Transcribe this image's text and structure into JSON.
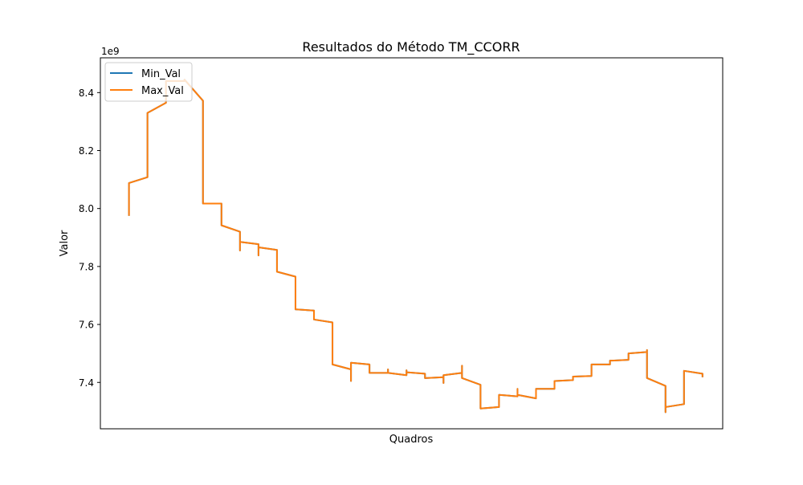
{
  "chart_data": {
    "type": "line",
    "title": "Resultados do Método TM_CCORR",
    "xlabel": "Quadros",
    "ylabel": "Valor",
    "y_offset_label": "1e9",
    "x_ticks": "none",
    "y_ticks": [
      7.4,
      7.6,
      7.8,
      8.0,
      8.2,
      8.4
    ],
    "y_tick_labels": [
      "7.4",
      "7.6",
      "7.8",
      "8.0",
      "8.2",
      "8.4"
    ],
    "ylim": [
      7.24,
      8.52
    ],
    "xlim": [
      -34,
      706
    ],
    "y_scale_factor": 1000000000,
    "grid": false,
    "legend_placement": "top-left",
    "series": [
      {
        "name": "Min_Val",
        "color": "#1f77b4",
        "points": [
          [
            0,
            7.975
          ],
          [
            0,
            8.088
          ],
          [
            22,
            8.108
          ],
          [
            22,
            8.33
          ],
          [
            44,
            8.365
          ],
          [
            44,
            8.44
          ],
          [
            66,
            8.44
          ],
          [
            66,
            8.445
          ],
          [
            88,
            8.372
          ],
          [
            88,
            8.017
          ],
          [
            110,
            8.017
          ],
          [
            110,
            7.942
          ],
          [
            132,
            7.92
          ],
          [
            132,
            7.855
          ],
          [
            132,
            7.885
          ],
          [
            154,
            7.877
          ],
          [
            154,
            7.838
          ],
          [
            154,
            7.866
          ],
          [
            176,
            7.857
          ],
          [
            176,
            7.782
          ],
          [
            198,
            7.765
          ],
          [
            198,
            7.652
          ],
          [
            220,
            7.648
          ],
          [
            220,
            7.617
          ],
          [
            242,
            7.607
          ],
          [
            242,
            7.462
          ],
          [
            264,
            7.445
          ],
          [
            264,
            7.405
          ],
          [
            264,
            7.468
          ],
          [
            286,
            7.462
          ],
          [
            286,
            7.433
          ],
          [
            308,
            7.433
          ],
          [
            308,
            7.445
          ],
          [
            308,
            7.433
          ],
          [
            330,
            7.425
          ],
          [
            330,
            7.442
          ],
          [
            330,
            7.435
          ],
          [
            352,
            7.43
          ],
          [
            352,
            7.415
          ],
          [
            374,
            7.418
          ],
          [
            374,
            7.398
          ],
          [
            374,
            7.425
          ],
          [
            396,
            7.433
          ],
          [
            396,
            7.458
          ],
          [
            396,
            7.415
          ],
          [
            418,
            7.392
          ],
          [
            418,
            7.31
          ],
          [
            440,
            7.315
          ],
          [
            440,
            7.357
          ],
          [
            462,
            7.352
          ],
          [
            462,
            7.378
          ],
          [
            462,
            7.357
          ],
          [
            484,
            7.345
          ],
          [
            484,
            7.378
          ],
          [
            506,
            7.378
          ],
          [
            506,
            7.405
          ],
          [
            528,
            7.408
          ],
          [
            528,
            7.42
          ],
          [
            550,
            7.422
          ],
          [
            550,
            7.462
          ],
          [
            572,
            7.462
          ],
          [
            572,
            7.475
          ],
          [
            594,
            7.478
          ],
          [
            594,
            7.5
          ],
          [
            616,
            7.505
          ],
          [
            616,
            7.512
          ],
          [
            616,
            7.415
          ],
          [
            638,
            7.388
          ],
          [
            638,
            7.297
          ],
          [
            638,
            7.315
          ],
          [
            660,
            7.325
          ],
          [
            660,
            7.44
          ],
          [
            682,
            7.43
          ],
          [
            682,
            7.418
          ]
        ]
      },
      {
        "name": "Max_Val",
        "color": "#ff7f0e",
        "points": [
          [
            0,
            7.975
          ],
          [
            0,
            8.088
          ],
          [
            22,
            8.108
          ],
          [
            22,
            8.33
          ],
          [
            44,
            8.365
          ],
          [
            44,
            8.44
          ],
          [
            66,
            8.44
          ],
          [
            66,
            8.445
          ],
          [
            88,
            8.372
          ],
          [
            88,
            8.017
          ],
          [
            110,
            8.017
          ],
          [
            110,
            7.942
          ],
          [
            132,
            7.92
          ],
          [
            132,
            7.855
          ],
          [
            132,
            7.885
          ],
          [
            154,
            7.877
          ],
          [
            154,
            7.838
          ],
          [
            154,
            7.866
          ],
          [
            176,
            7.857
          ],
          [
            176,
            7.782
          ],
          [
            198,
            7.765
          ],
          [
            198,
            7.652
          ],
          [
            220,
            7.648
          ],
          [
            220,
            7.617
          ],
          [
            242,
            7.607
          ],
          [
            242,
            7.462
          ],
          [
            264,
            7.445
          ],
          [
            264,
            7.405
          ],
          [
            264,
            7.468
          ],
          [
            286,
            7.462
          ],
          [
            286,
            7.433
          ],
          [
            308,
            7.433
          ],
          [
            308,
            7.445
          ],
          [
            308,
            7.433
          ],
          [
            330,
            7.425
          ],
          [
            330,
            7.442
          ],
          [
            330,
            7.435
          ],
          [
            352,
            7.43
          ],
          [
            352,
            7.415
          ],
          [
            374,
            7.418
          ],
          [
            374,
            7.398
          ],
          [
            374,
            7.425
          ],
          [
            396,
            7.433
          ],
          [
            396,
            7.458
          ],
          [
            396,
            7.415
          ],
          [
            418,
            7.392
          ],
          [
            418,
            7.31
          ],
          [
            440,
            7.315
          ],
          [
            440,
            7.357
          ],
          [
            462,
            7.352
          ],
          [
            462,
            7.378
          ],
          [
            462,
            7.357
          ],
          [
            484,
            7.345
          ],
          [
            484,
            7.378
          ],
          [
            506,
            7.378
          ],
          [
            506,
            7.405
          ],
          [
            528,
            7.408
          ],
          [
            528,
            7.42
          ],
          [
            550,
            7.422
          ],
          [
            550,
            7.462
          ],
          [
            572,
            7.462
          ],
          [
            572,
            7.475
          ],
          [
            594,
            7.478
          ],
          [
            594,
            7.5
          ],
          [
            616,
            7.505
          ],
          [
            616,
            7.512
          ],
          [
            616,
            7.415
          ],
          [
            638,
            7.388
          ],
          [
            638,
            7.297
          ],
          [
            638,
            7.315
          ],
          [
            660,
            7.325
          ],
          [
            660,
            7.44
          ],
          [
            682,
            7.43
          ],
          [
            682,
            7.418
          ]
        ]
      }
    ]
  }
}
